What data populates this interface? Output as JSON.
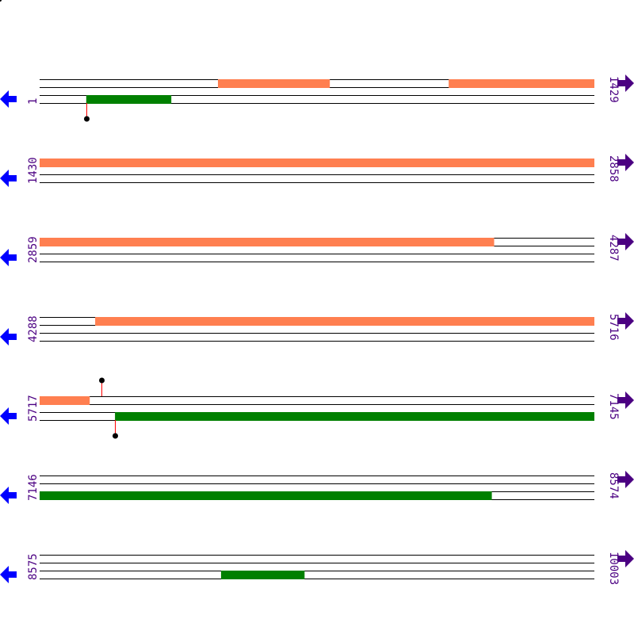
{
  "colors": {
    "forward_feature": "#ff7f50",
    "reverse_feature": "#008000",
    "track_line": "#000000",
    "lollipop_stem": "#ff0000",
    "lollipop_head": "#000000",
    "label": "#4b0082",
    "left_arrow": "#0000ff",
    "right_arrow": "#4b0082"
  },
  "icons": {
    "left": "arrow-left-icon",
    "right": "arrow-right-icon"
  },
  "rows": [
    {
      "start": "1",
      "end": "1429",
      "features": [
        {
          "strand": "forward",
          "from": 460,
          "to": 748
        },
        {
          "strand": "forward",
          "from": 1054,
          "to": 1429
        },
        {
          "strand": "reverse",
          "from": 121,
          "to": 340
        }
      ],
      "lollipops": [
        {
          "strand": "reverse",
          "pos": 121
        }
      ]
    },
    {
      "start": "1430",
      "end": "2858",
      "features": [
        {
          "strand": "forward",
          "from": 1430,
          "to": 2858
        }
      ],
      "lollipops": []
    },
    {
      "start": "2859",
      "end": "4287",
      "features": [
        {
          "strand": "forward",
          "from": 2859,
          "to": 4029
        }
      ],
      "lollipops": []
    },
    {
      "start": "4288",
      "end": "5716",
      "features": [
        {
          "strand": "forward",
          "from": 4431,
          "to": 5716
        }
      ],
      "lollipops": []
    },
    {
      "start": "5717",
      "end": "7145",
      "features": [
        {
          "strand": "forward",
          "from": 5717,
          "to": 5846
        },
        {
          "strand": "reverse",
          "from": 5911,
          "to": 7145
        }
      ],
      "lollipops": [
        {
          "strand": "forward",
          "pos": 5876
        },
        {
          "strand": "reverse",
          "pos": 5911
        }
      ]
    },
    {
      "start": "7146",
      "end": "8574",
      "features": [
        {
          "strand": "reverse",
          "from": 7146,
          "to": 8310
        }
      ],
      "lollipops": []
    },
    {
      "start": "8575",
      "end": "10003",
      "features": [
        {
          "strand": "reverse",
          "from": 9042,
          "to": 9257
        }
      ],
      "lollipops": []
    }
  ]
}
